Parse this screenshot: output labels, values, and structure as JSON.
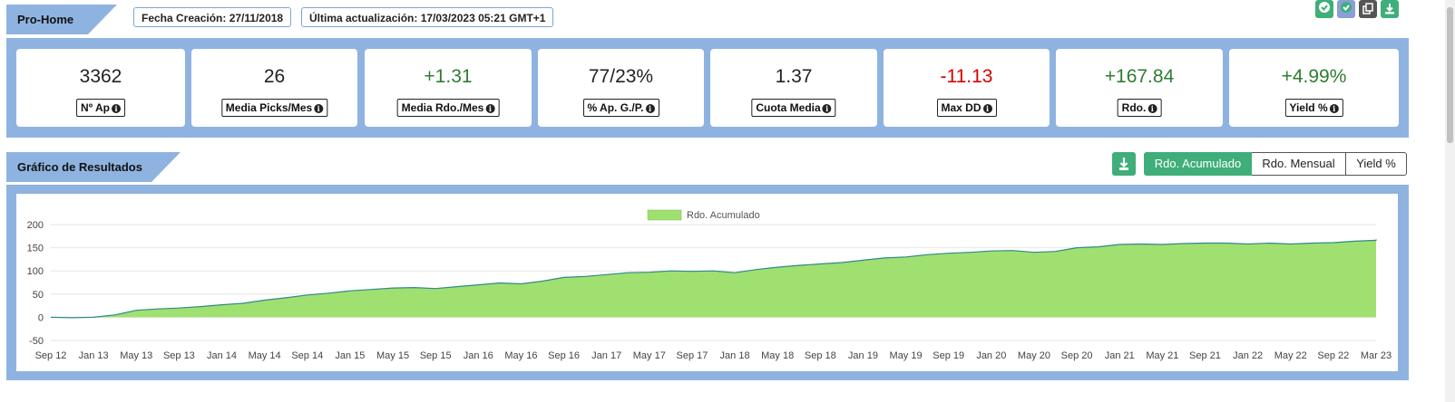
{
  "header": {
    "section_title": "Pro-Home",
    "created": "Fecha Creación: 27/11/2018",
    "updated": "Última actualización: 17/03/2023 05:21 GMT+1"
  },
  "toolbar": {
    "icons": [
      "check-icon",
      "check-icon",
      "copy-icon",
      "download-icon"
    ],
    "colors": [
      "#3fae79",
      "#3fae79",
      "#555555",
      "#3fae79"
    ]
  },
  "stats": [
    {
      "value": "3362",
      "label": "Nº Ap",
      "tone": "neutral"
    },
    {
      "value": "26",
      "label": "Media Picks/Mes",
      "tone": "neutral"
    },
    {
      "value": "+1.31",
      "label": "Media Rdo./Mes",
      "tone": "pos"
    },
    {
      "value": "77/23%",
      "label": "% Ap. G./P.",
      "tone": "neutral"
    },
    {
      "value": "1.37",
      "label": "Cuota Media",
      "tone": "neutral"
    },
    {
      "value": "-11.13",
      "label": "Max DD",
      "tone": "neg"
    },
    {
      "value": "+167.84",
      "label": "Rdo.",
      "tone": "pos"
    },
    {
      "value": "+4.99%",
      "label": "Yield %",
      "tone": "pos"
    }
  ],
  "chart_section": {
    "title": "Gráfico de Resultados",
    "download_icon": "download-icon",
    "tabs": [
      "Rdo. Acumulado",
      "Rdo. Mensual",
      "Yield %"
    ],
    "active_tab": "Rdo. Acumulado"
  },
  "colors": {
    "panel": "#8fb3e0",
    "accent": "#3fae79",
    "area_fill": "#a0e070",
    "area_line": "#2e8a88",
    "positive": "#2f7d32",
    "negative": "#d50000"
  },
  "chart_data": {
    "type": "area",
    "title": "",
    "xlabel": "",
    "ylabel": "",
    "ylim": [
      -50,
      200
    ],
    "yticks": [
      -50,
      0,
      50,
      100,
      150,
      200
    ],
    "legend": "top-center",
    "grid": true,
    "x_ticks": [
      "Sep 12",
      "Jan 13",
      "May 13",
      "Sep 13",
      "Jan 14",
      "May 14",
      "Sep 14",
      "Jan 15",
      "May 15",
      "Sep 15",
      "Jan 16",
      "May 16",
      "Sep 16",
      "Jan 17",
      "May 17",
      "Sep 17",
      "Jan 18",
      "May 18",
      "Sep 18",
      "Jan 19",
      "May 19",
      "Sep 19",
      "Jan 20",
      "May 20",
      "Sep 20",
      "Jan 21",
      "May 21",
      "Sep 21",
      "Jan 22",
      "May 22",
      "Sep 22",
      "Mar 23"
    ],
    "series": [
      {
        "name": "Rdo. Acumulado",
        "x": [
          "Sep 12",
          "Nov 12",
          "Jan 13",
          "Mar 13",
          "May 13",
          "Jul 13",
          "Sep 13",
          "Nov 13",
          "Jan 14",
          "Mar 14",
          "May 14",
          "Jul 14",
          "Sep 14",
          "Nov 14",
          "Jan 15",
          "Mar 15",
          "May 15",
          "Jul 15",
          "Sep 15",
          "Nov 15",
          "Jan 16",
          "Mar 16",
          "May 16",
          "Jul 16",
          "Sep 16",
          "Nov 16",
          "Jan 17",
          "Mar 17",
          "May 17",
          "Jul 17",
          "Sep 17",
          "Nov 17",
          "Jan 18",
          "Mar 18",
          "May 18",
          "Jul 18",
          "Sep 18",
          "Nov 18",
          "Jan 19",
          "Mar 19",
          "May 19",
          "Jul 19",
          "Sep 19",
          "Nov 19",
          "Jan 20",
          "Mar 20",
          "May 20",
          "Jul 20",
          "Sep 20",
          "Nov 20",
          "Jan 21",
          "Mar 21",
          "May 21",
          "Jul 21",
          "Sep 21",
          "Nov 21",
          "Jan 22",
          "Mar 22",
          "May 22",
          "Jul 22",
          "Sep 22",
          "Nov 22",
          "Jan 23",
          "Mar 23"
        ],
        "values": [
          0,
          -1,
          0,
          5,
          15,
          18,
          20,
          23,
          27,
          30,
          37,
          42,
          48,
          52,
          57,
          60,
          63,
          64,
          62,
          66,
          70,
          74,
          72,
          78,
          86,
          88,
          92,
          96,
          97,
          100,
          99,
          100,
          96,
          103,
          108,
          112,
          115,
          118,
          123,
          128,
          130,
          135,
          138,
          140,
          143,
          144,
          140,
          142,
          150,
          152,
          157,
          158,
          157,
          159,
          160,
          160,
          158,
          160,
          158,
          160,
          161,
          164,
          166,
          168
        ]
      }
    ]
  }
}
